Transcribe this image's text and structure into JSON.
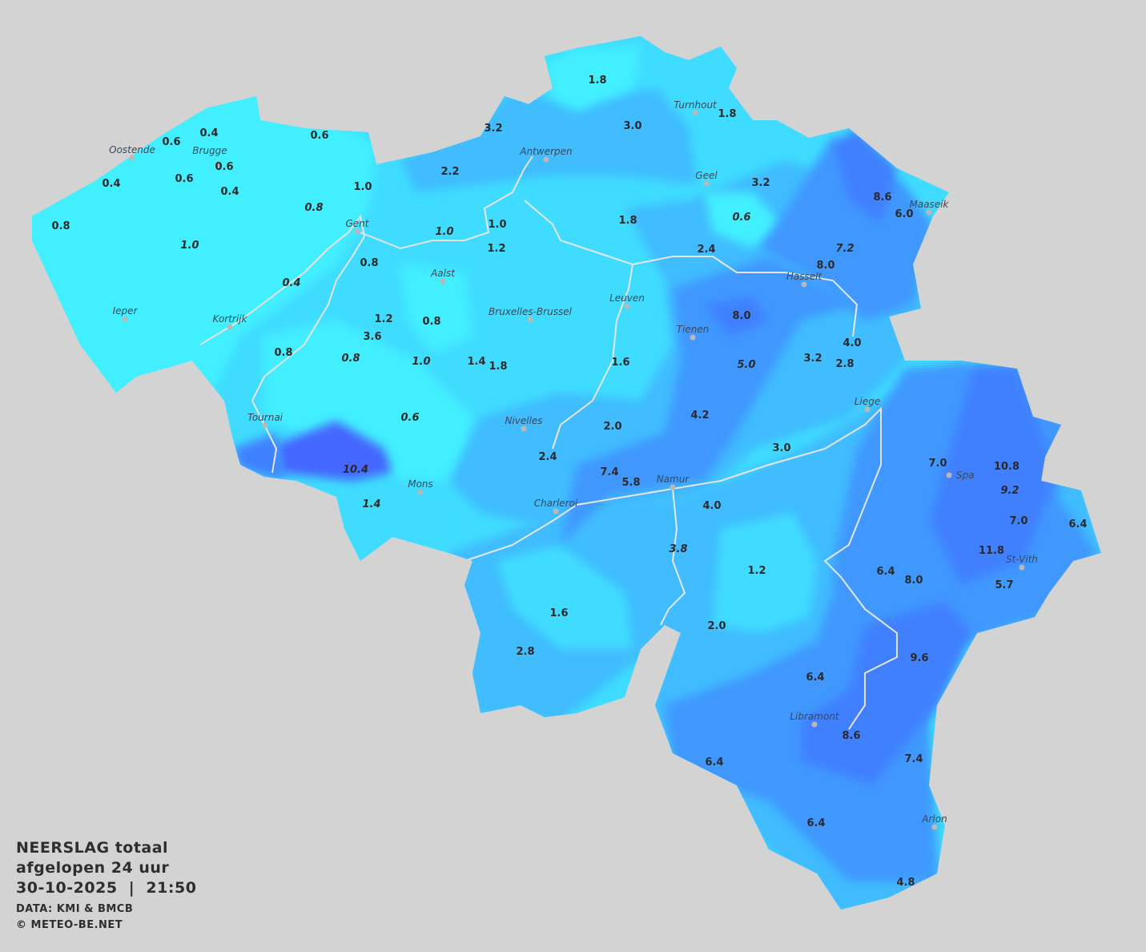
{
  "title": {
    "line1": "NEERSLAG totaal",
    "line2": "afgelopen 24 uur",
    "line3": "30-10-2025  |  21:50",
    "source": "DATA: KMI & BMCB",
    "copyright": "© METEO-BE.NET"
  },
  "map": {
    "region": "Belgium",
    "variable": "precipitation total last 24h (mm)",
    "colors": {
      "background": "#d3d3d3",
      "level_0": "#42efff",
      "level_1": "#3fdcff",
      "level_2": "#3fbcff",
      "level_3": "#3f98ff",
      "level_4": "#4080ff",
      "level_5": "#4466ff",
      "rivers": "#e6e6e6",
      "city_dot": "#b8b8b8"
    },
    "cities": [
      "Oostende",
      "Brugge",
      "Antwerpen",
      "Turnhout",
      "Geel",
      "Maaseik",
      "Gent",
      "Aalst",
      "Hasselt",
      "Ieper",
      "Kortrijk",
      "Bruxelles-Brussel",
      "Leuven",
      "Tienen",
      "Liege",
      "Tournai",
      "Nivelles",
      "Spa",
      "Mons",
      "Charleroi",
      "Namur",
      "St-Vith",
      "Libramont",
      "Arlon"
    ],
    "values": [
      {
        "v": "1.8"
      },
      {
        "v": "3.0"
      },
      {
        "v": "1.8"
      },
      {
        "v": "3.2"
      },
      {
        "v": "2.2"
      },
      {
        "v": "0.6"
      },
      {
        "v": "0.4"
      },
      {
        "v": "0.6"
      },
      {
        "v": "0.6"
      },
      {
        "v": "0.4"
      },
      {
        "v": "0.6"
      },
      {
        "v": "0.4"
      },
      {
        "v": "1.0"
      },
      {
        "v": "0.8",
        "italic": true
      },
      {
        "v": "0.8"
      },
      {
        "v": "1.0",
        "italic": true
      },
      {
        "v": "1.0",
        "italic": true
      },
      {
        "v": "1.0"
      },
      {
        "v": "1.2"
      },
      {
        "v": "1.8"
      },
      {
        "v": "3.2"
      },
      {
        "v": "0.6",
        "italic": true
      },
      {
        "v": "8.6"
      },
      {
        "v": "6.0"
      },
      {
        "v": "7.2",
        "italic": true
      },
      {
        "v": "8.0"
      },
      {
        "v": "2.4"
      },
      {
        "v": "0.8"
      },
      {
        "v": "0.4",
        "italic": true
      },
      {
        "v": "1.2"
      },
      {
        "v": "3.6"
      },
      {
        "v": "0.8"
      },
      {
        "v": "8.0"
      },
      {
        "v": "4.0"
      },
      {
        "v": "0.8"
      },
      {
        "v": "0.8",
        "italic": true
      },
      {
        "v": "1.0",
        "italic": true
      },
      {
        "v": "1.4"
      },
      {
        "v": "1.8"
      },
      {
        "v": "1.6"
      },
      {
        "v": "5.0",
        "italic": true
      },
      {
        "v": "3.2"
      },
      {
        "v": "2.8"
      },
      {
        "v": "0.6",
        "italic": true
      },
      {
        "v": "2.0"
      },
      {
        "v": "4.2"
      },
      {
        "v": "3.0"
      },
      {
        "v": "10.4",
        "italic": true
      },
      {
        "v": "2.4"
      },
      {
        "v": "7.4"
      },
      {
        "v": "5.8"
      },
      {
        "v": "7.0"
      },
      {
        "v": "10.8"
      },
      {
        "v": "9.2",
        "italic": true
      },
      {
        "v": "1.4",
        "italic": true
      },
      {
        "v": "4.0"
      },
      {
        "v": "7.0"
      },
      {
        "v": "6.4"
      },
      {
        "v": "3.8",
        "italic": true
      },
      {
        "v": "1.2"
      },
      {
        "v": "11.8"
      },
      {
        "v": "6.4"
      },
      {
        "v": "8.0"
      },
      {
        "v": "5.7"
      },
      {
        "v": "1.6"
      },
      {
        "v": "2.0"
      },
      {
        "v": "2.8"
      },
      {
        "v": "9.6"
      },
      {
        "v": "6.4"
      },
      {
        "v": "8.6"
      },
      {
        "v": "6.4"
      },
      {
        "v": "7.4"
      },
      {
        "v": "6.4"
      },
      {
        "v": "4.8"
      }
    ]
  }
}
